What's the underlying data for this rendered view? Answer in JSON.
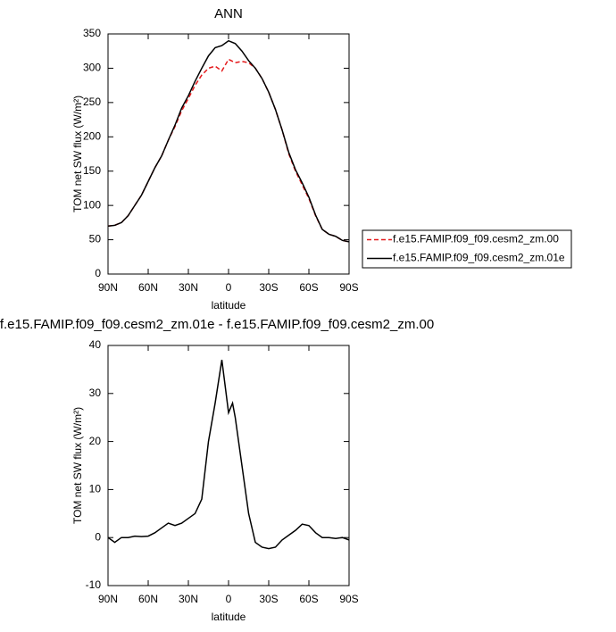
{
  "chart_data": [
    {
      "type": "line",
      "title": "ANN",
      "xlabel": "latitude",
      "ylabel": "TOM net SW flux (W/m²)",
      "x": [
        90,
        85,
        80,
        75,
        70,
        65,
        60,
        55,
        50,
        45,
        40,
        35,
        30,
        25,
        20,
        15,
        10,
        5,
        0,
        -5,
        -10,
        -15,
        -20,
        -25,
        -30,
        -35,
        -40,
        -45,
        -50,
        -55,
        -60,
        -65,
        -70,
        -75,
        -80,
        -85,
        -90
      ],
      "series": [
        {
          "name": "f.e15.FAMIP.f09_f09.cesm2_zm.00",
          "color": "#e41a1c",
          "dash": true,
          "values": [
            70,
            71,
            75,
            85,
            100,
            115,
            135,
            155,
            172,
            195,
            215,
            238,
            256,
            275,
            290,
            300,
            303,
            296,
            313,
            308,
            310,
            308,
            300,
            285,
            265,
            240,
            210,
            175,
            150,
            130,
            110,
            85,
            65,
            58,
            55,
            49,
            47
          ]
        },
        {
          "name": "f.e15.FAMIP.f09_f09.cesm2_zm.01e",
          "color": "#000000",
          "dash": false,
          "values": [
            70,
            71,
            75,
            85,
            100,
            115,
            135,
            155,
            172,
            195,
            217,
            242,
            260,
            281,
            300,
            318,
            330,
            333,
            340,
            336,
            325,
            311,
            300,
            285,
            265,
            240,
            210,
            177,
            152,
            133,
            112,
            86,
            65,
            58,
            55,
            49,
            47
          ]
        }
      ],
      "xlim": [
        90,
        -90
      ],
      "xticks": [
        {
          "value": 90,
          "label": "90N"
        },
        {
          "value": 60,
          "label": "60N"
        },
        {
          "value": 30,
          "label": "30N"
        },
        0,
        {
          "value": -30,
          "label": "30S"
        },
        {
          "value": -60,
          "label": "60S"
        },
        {
          "value": -90,
          "label": "90S"
        }
      ],
      "ylim": [
        0,
        350
      ],
      "yticks": [
        0,
        50,
        100,
        150,
        200,
        250,
        300,
        350
      ],
      "legend": "right"
    },
    {
      "type": "line",
      "title": "f.e15.FAMIP.f09_f09.cesm2_zm.01e - f.e15.FAMIP.f09_f09.cesm2_zm.00",
      "xlabel": "latitude",
      "ylabel": "TOM net SW flux (W/m²)",
      "x": [
        90,
        85,
        80,
        75,
        70,
        65,
        60,
        55,
        50,
        45,
        40,
        35,
        30,
        25,
        20,
        15,
        10,
        5,
        0,
        -3,
        -5,
        -10,
        -15,
        -20,
        -25,
        -30,
        -35,
        -40,
        -45,
        -50,
        -55,
        -60,
        -65,
        -70,
        -75,
        -80,
        -85,
        -90
      ],
      "series": [
        {
          "color": "#000000",
          "dash": false,
          "values": [
            0,
            -1,
            0,
            0,
            0.3,
            0.2,
            0.3,
            1,
            2,
            3,
            2.5,
            3,
            4,
            5,
            8,
            20,
            28,
            37,
            26,
            28,
            25,
            15,
            5,
            -1,
            -2,
            -2.3,
            -2,
            -0.5,
            0.5,
            1.5,
            2.8,
            2.5,
            1,
            0,
            0,
            -0.2,
            0,
            -0.5
          ]
        }
      ],
      "xlim": [
        90,
        -90
      ],
      "xticks": [
        {
          "value": 90,
          "label": "90N"
        },
        {
          "value": 60,
          "label": "60N"
        },
        {
          "value": 30,
          "label": "30N"
        },
        0,
        {
          "value": -30,
          "label": "30S"
        },
        {
          "value": -60,
          "label": "60S"
        },
        {
          "value": -90,
          "label": "90S"
        }
      ],
      "ylim": [
        -10,
        40
      ],
      "yticks": [
        -10,
        0,
        10,
        20,
        30,
        40
      ]
    }
  ]
}
